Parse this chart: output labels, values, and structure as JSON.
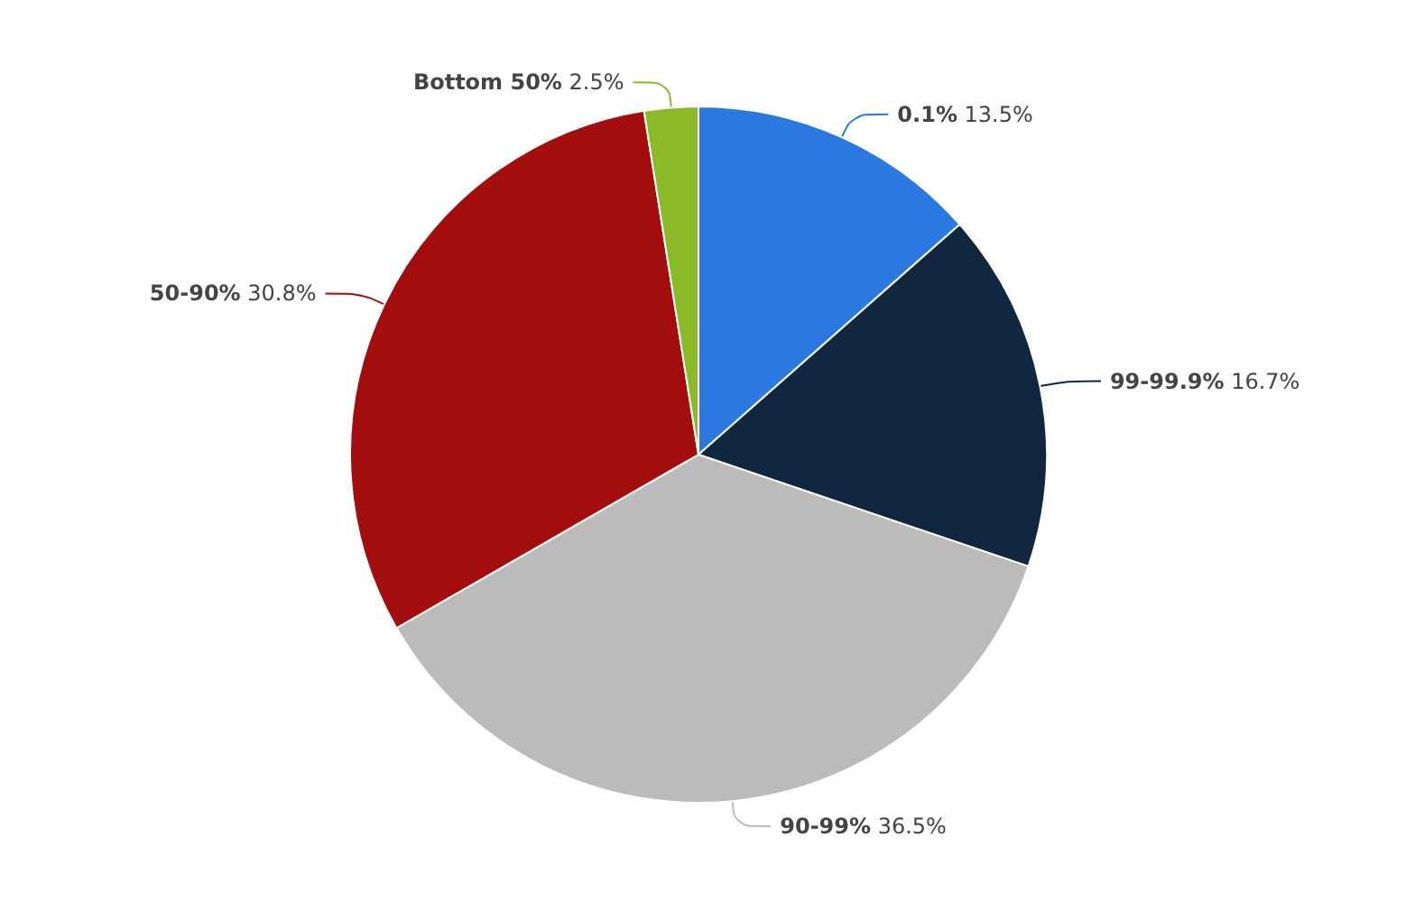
{
  "chart_data": {
    "type": "pie",
    "categories": [
      "0.1%",
      "99-99.9%",
      "90-99%",
      "50-90%",
      "Bottom 50%"
    ],
    "values": [
      13.5,
      16.7,
      36.5,
      30.8,
      2.5
    ],
    "value_labels": [
      "13.5%",
      "16.7%",
      "36.5%",
      "30.8%",
      "2.5%"
    ],
    "colors": [
      "#2b78e0",
      "#10273f",
      "#bbbbbb",
      "#a30d0d",
      "#8aba27"
    ],
    "legend": false
  }
}
